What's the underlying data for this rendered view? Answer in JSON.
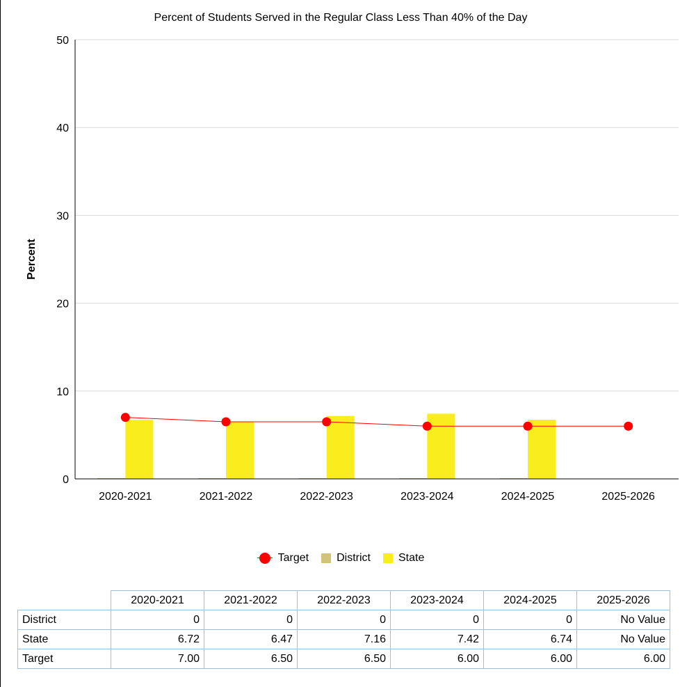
{
  "chart_data": {
    "type": "bar",
    "title": "Percent of Students Served in the Regular Class Less Than 40% of the Day",
    "ylabel": "Percent",
    "xlabel": "",
    "ylim": [
      0,
      50
    ],
    "yticks": [
      0,
      10,
      20,
      30,
      40,
      50
    ],
    "grid": true,
    "legend_position": "bottom",
    "categories": [
      "2020-2021",
      "2021-2022",
      "2022-2023",
      "2023-2024",
      "2024-2025",
      "2025-2026"
    ],
    "series": [
      {
        "name": "District",
        "type": "bar",
        "color": "#d2c37a",
        "values": [
          0,
          0,
          0,
          0,
          0,
          null
        ]
      },
      {
        "name": "State",
        "type": "bar",
        "color": "#f9ed1e",
        "values": [
          6.72,
          6.47,
          7.16,
          7.42,
          6.74,
          null
        ]
      },
      {
        "name": "Target",
        "type": "line",
        "color": "#ff0000",
        "values": [
          7.0,
          6.5,
          6.5,
          6.0,
          6.0,
          6.0
        ]
      }
    ]
  },
  "legend": {
    "items": [
      {
        "label": "Target",
        "style": "line-marker",
        "color": "#ff0000"
      },
      {
        "label": "District",
        "style": "box",
        "color": "#d2c37a"
      },
      {
        "label": "State",
        "style": "box",
        "color": "#f9ed1e"
      }
    ]
  },
  "table": {
    "columns": [
      "2020-2021",
      "2021-2022",
      "2022-2023",
      "2023-2024",
      "2024-2025",
      "2025-2026"
    ],
    "rows": [
      {
        "label": "District",
        "cells": [
          "0",
          "0",
          "0",
          "0",
          "0",
          "No Value"
        ]
      },
      {
        "label": "State",
        "cells": [
          "6.72",
          "6.47",
          "7.16",
          "7.42",
          "6.74",
          "No Value"
        ]
      },
      {
        "label": "Target",
        "cells": [
          "7.00",
          "6.50",
          "6.50",
          "6.00",
          "6.00",
          "6.00"
        ]
      }
    ]
  }
}
